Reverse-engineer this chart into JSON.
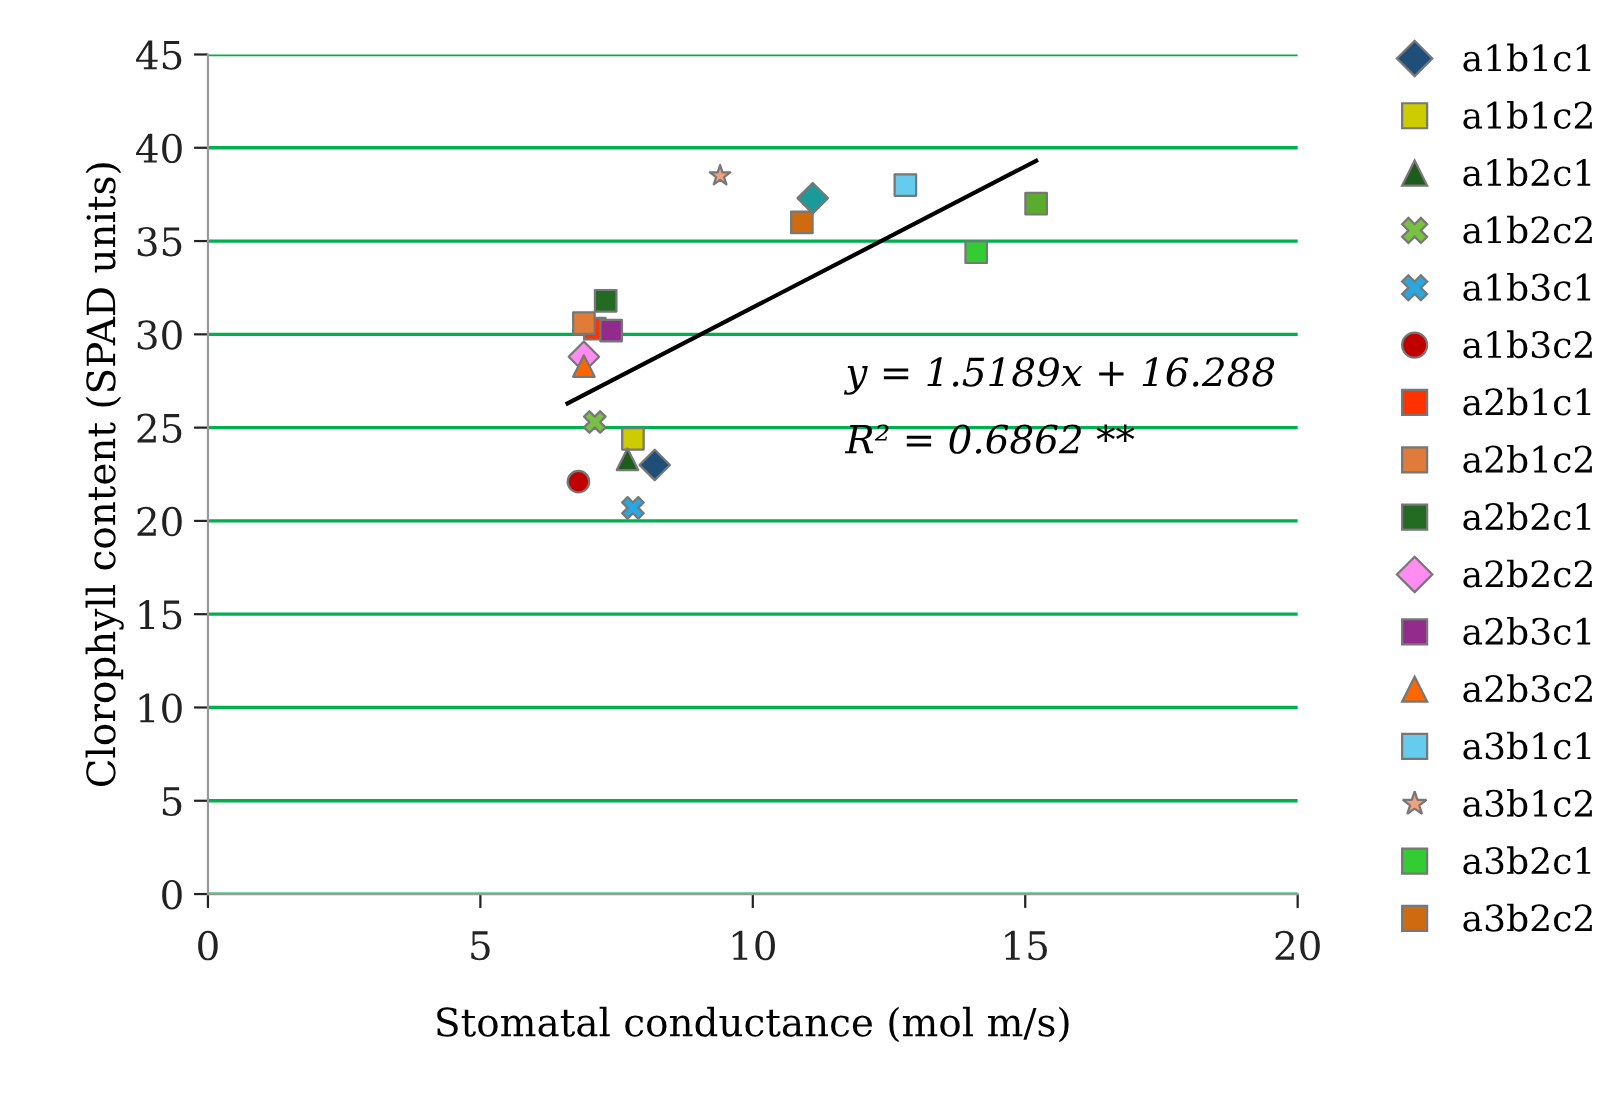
{
  "chart_data": {
    "type": "scatter",
    "xlabel": "Stomatal conductance (mol m/s)",
    "ylabel": "Clorophyll content (SPAD units)",
    "xlim": [
      0,
      20
    ],
    "xticks": [
      0,
      5,
      10,
      15,
      20
    ],
    "ylim": [
      0,
      45
    ],
    "yticks": [
      0,
      5,
      10,
      15,
      20,
      25,
      30,
      35,
      40,
      45
    ],
    "grid": "y",
    "legend": "right",
    "annotations": [
      "y = 1.5189x + 16.288",
      "R² = 0.6862 **"
    ],
    "series": [
      {
        "name": "a1b1c1",
        "color": "#1f4e79",
        "marker": "diamond",
        "x": [
          8.2
        ],
        "values": [
          23.0
        ]
      },
      {
        "name": "a1b1c2",
        "color": "#cccc00",
        "marker": "square",
        "x": [
          7.8
        ],
        "values": [
          24.4
        ]
      },
      {
        "name": "a1b2c1",
        "color": "#1e5c1e",
        "marker": "triangle",
        "x": [
          7.7
        ],
        "values": [
          23.3
        ]
      },
      {
        "name": "a1b2c2",
        "color": "#7ac143",
        "marker": "cross",
        "x": [
          7.1
        ],
        "values": [
          25.3
        ]
      },
      {
        "name": "a1b3c1",
        "color": "#29a8e0",
        "marker": "cross",
        "x": [
          7.8
        ],
        "values": [
          20.7
        ]
      },
      {
        "name": "a1b3c2",
        "color": "#c00000",
        "marker": "circle",
        "x": [
          6.8
        ],
        "values": [
          22.1
        ]
      },
      {
        "name": "a2b1c1",
        "color": "#ff3300",
        "marker": "square",
        "x": [
          7.1
        ],
        "values": [
          30.3
        ]
      },
      {
        "name": "a2b1c2",
        "color": "#e07b39",
        "marker": "square",
        "x": [
          6.9
        ],
        "values": [
          30.6
        ]
      },
      {
        "name": "a2b2c1",
        "color": "#236b23",
        "marker": "square",
        "x": [
          7.3
        ],
        "values": [
          31.8
        ]
      },
      {
        "name": "a2b2c2",
        "color": "#ff8cf0",
        "marker": "diamond",
        "x": [
          6.9
        ],
        "values": [
          28.8
        ]
      },
      {
        "name": "a2b3c1",
        "color": "#922b8c",
        "marker": "square",
        "x": [
          7.4
        ],
        "values": [
          30.2
        ]
      },
      {
        "name": "a2b3c2",
        "color": "#ff6600",
        "marker": "triangle",
        "x": [
          6.9
        ],
        "values": [
          28.3
        ]
      },
      {
        "name": "a3b1c1",
        "color": "#66ccee",
        "marker": "square",
        "x": [
          12.8
        ],
        "values": [
          38.0
        ]
      },
      {
        "name": "a3b1c2",
        "color": "#f4a080",
        "marker": "star",
        "x": [
          9.4
        ],
        "values": [
          38.5
        ]
      },
      {
        "name": "a3b2c1",
        "color": "#33cc33",
        "marker": "square",
        "x": [
          14.1
        ],
        "values": [
          34.4
        ]
      },
      {
        "name": "a3b2c2",
        "color": "#d06a10",
        "marker": "square",
        "x": [
          10.9
        ],
        "values": [
          36.0
        ]
      },
      {
        "color": "#1a9a9a",
        "marker": "diamond",
        "x": [
          11.1
        ],
        "values": [
          37.3
        ]
      },
      {
        "color": "#5aab2e",
        "marker": "square",
        "x": [
          15.2
        ],
        "values": [
          37.0
        ]
      },
      {
        "type": "line",
        "color": "#000000",
        "marker": "none",
        "x": [
          6.6,
          15.2
        ],
        "values": [
          26.3,
          39.3
        ]
      }
    ]
  }
}
